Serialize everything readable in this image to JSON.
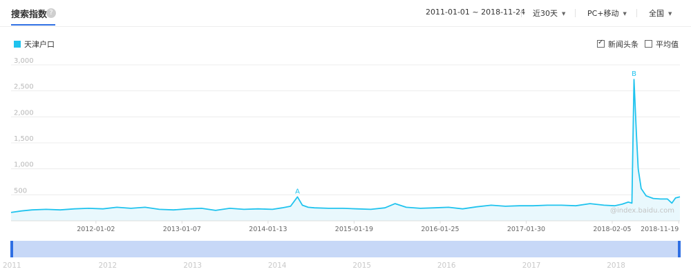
{
  "header": {
    "title": "搜索指数",
    "help_icon": "question-icon",
    "date_range": "2011-01-01 ~ 2018-11-24",
    "period": "近30天",
    "device": "PC+移动",
    "region": "全国"
  },
  "legend": {
    "series_name": "天津户口",
    "color": "#1fc3ee"
  },
  "options": {
    "news": {
      "label": "新闻头条",
      "checked": true
    },
    "average": {
      "label": "平均值",
      "checked": false
    }
  },
  "watermark": "@index.baidu.com",
  "chart_data": {
    "type": "area",
    "title": "",
    "xlabel": "",
    "ylabel": "",
    "ylim": [
      0,
      3000
    ],
    "yticks": [
      "500",
      "1,000",
      "1,500",
      "2,000",
      "2,500",
      "3,000"
    ],
    "ytick_values": [
      500,
      1000,
      1500,
      2000,
      2500,
      3000
    ],
    "x_range": [
      "2011-01-01",
      "2018-11-24"
    ],
    "xticks": [
      "2012-01-02",
      "2013-01-07",
      "2014-01-13",
      "2015-01-19",
      "2016-01-25",
      "2017-01-30",
      "2018-02-05",
      "2018-11-19"
    ],
    "grid": true,
    "series": [
      {
        "name": "天津户口",
        "color": "#1fc3ee",
        "x": [
          "2011-01-01",
          "2011-02-15",
          "2011-04-01",
          "2011-06-01",
          "2011-08-01",
          "2011-10-01",
          "2011-12-01",
          "2012-02-01",
          "2012-04-01",
          "2012-06-01",
          "2012-08-01",
          "2012-10-01",
          "2012-12-01",
          "2013-02-01",
          "2013-04-01",
          "2013-06-01",
          "2013-08-01",
          "2013-10-01",
          "2013-12-01",
          "2014-02-01",
          "2014-03-15",
          "2014-04-20",
          "2014-05-20",
          "2014-06-10",
          "2014-07-05",
          "2014-08-01",
          "2014-10-01",
          "2014-12-01",
          "2015-02-01",
          "2015-04-01",
          "2015-06-01",
          "2015-07-15",
          "2015-09-01",
          "2015-11-01",
          "2016-01-01",
          "2016-03-01",
          "2016-05-01",
          "2016-07-01",
          "2016-09-01",
          "2016-11-01",
          "2017-01-01",
          "2017-03-01",
          "2017-05-01",
          "2017-07-01",
          "2017-09-01",
          "2017-11-01",
          "2018-01-01",
          "2018-02-15",
          "2018-03-20",
          "2018-04-15",
          "2018-05-01",
          "2018-05-10",
          "2018-05-20",
          "2018-05-28",
          "2018-06-10",
          "2018-07-01",
          "2018-08-01",
          "2018-09-01",
          "2018-10-01",
          "2018-10-20",
          "2018-11-05",
          "2018-11-24"
        ],
        "values": [
          160,
          190,
          210,
          220,
          210,
          230,
          240,
          230,
          260,
          240,
          260,
          220,
          210,
          230,
          240,
          200,
          240,
          220,
          230,
          220,
          250,
          280,
          460,
          300,
          260,
          250,
          240,
          240,
          230,
          220,
          250,
          330,
          260,
          240,
          250,
          260,
          230,
          270,
          300,
          280,
          290,
          290,
          300,
          300,
          290,
          330,
          300,
          290,
          320,
          360,
          340,
          2720,
          1700,
          1000,
          620,
          480,
          430,
          420,
          420,
          340,
          440,
          460
        ]
      }
    ],
    "annotations": [
      {
        "label": "A",
        "x": "2014-05-20",
        "y": 460
      },
      {
        "label": "B",
        "x": "2018-05-10",
        "y": 2720
      }
    ],
    "navigator": {
      "years": [
        "2011",
        "2012",
        "2013",
        "2014",
        "2015",
        "2016",
        "2017",
        "2018"
      ],
      "selection": [
        "2011-01-01",
        "2018-11-24"
      ]
    }
  }
}
